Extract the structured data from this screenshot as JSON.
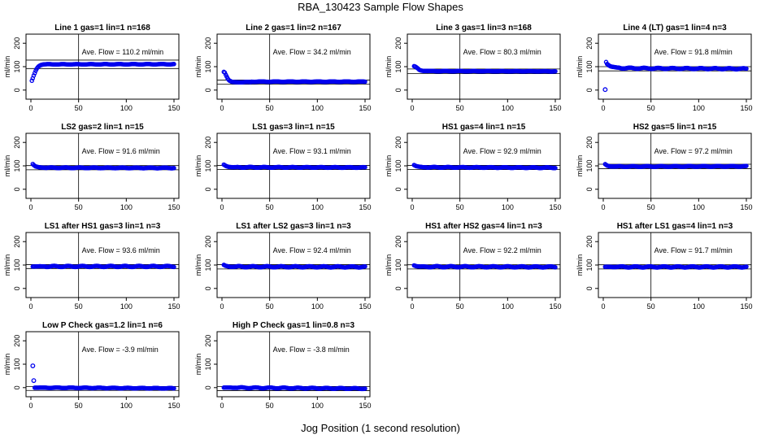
{
  "figure": {
    "title": "RBA_130423  Sample Flow Shapes",
    "xlabel": "Jog Position (1 second resolution)"
  },
  "chart_data": [
    {
      "type": "scatter",
      "title": "Line 1 gas=1 lin=1 n=168",
      "annotation": "Ave. Flow = 110.2  ml/min",
      "mean": 110.2,
      "ylabel": "ml/min",
      "xlim": [
        0,
        150
      ],
      "ylim": [
        -25,
        225
      ],
      "xticks": [
        0,
        50,
        100,
        150
      ],
      "yticks": [
        0,
        100,
        200
      ],
      "vline": 50,
      "hlines": [
        92,
        128
      ],
      "keypoints": [
        [
          1,
          40
        ],
        [
          2,
          50
        ],
        [
          3,
          62
        ],
        [
          4,
          72
        ],
        [
          5,
          82
        ],
        [
          6,
          90
        ],
        [
          7,
          96
        ],
        [
          8,
          101
        ],
        [
          9,
          104
        ],
        [
          10,
          106
        ],
        [
          11,
          108
        ],
        [
          12,
          109
        ],
        [
          14,
          110
        ],
        [
          150,
          110.5
        ]
      ],
      "noise": 0.8
    },
    {
      "type": "scatter",
      "title": "Line 2 gas=1 lin=2 n=167",
      "annotation": "Ave. Flow = 34.2  ml/min",
      "mean": 34.2,
      "ylabel": "ml/min",
      "xlim": [
        0,
        150
      ],
      "ylim": [
        -25,
        225
      ],
      "xticks": [
        0,
        50,
        100,
        150
      ],
      "yticks": [
        0,
        100,
        200
      ],
      "vline": 50,
      "hlines": [
        25,
        43
      ],
      "keypoints": [
        [
          2,
          78
        ],
        [
          3,
          75
        ],
        [
          4,
          66
        ],
        [
          5,
          58
        ],
        [
          6,
          50
        ],
        [
          7,
          44
        ],
        [
          8,
          40
        ],
        [
          9,
          38
        ],
        [
          10,
          36
        ],
        [
          12,
          34
        ],
        [
          30,
          34
        ],
        [
          31,
          36
        ],
        [
          150,
          36
        ]
      ],
      "noise": 0.8
    },
    {
      "type": "scatter",
      "title": "Line 3 gas=1 lin=3 n=168",
      "annotation": "Ave. Flow = 80.3  ml/min",
      "mean": 80.3,
      "ylabel": "ml/min",
      "xlim": [
        0,
        150
      ],
      "ylim": [
        -25,
        225
      ],
      "xticks": [
        0,
        50,
        100,
        150
      ],
      "yticks": [
        0,
        100,
        200
      ],
      "vline": 50,
      "hlines": [
        70,
        90
      ],
      "keypoints": [
        [
          2,
          102
        ],
        [
          3,
          101
        ],
        [
          4,
          98
        ],
        [
          5,
          95
        ],
        [
          6,
          92
        ],
        [
          7,
          88
        ],
        [
          8,
          85
        ],
        [
          10,
          83
        ],
        [
          12,
          82
        ],
        [
          20,
          81
        ],
        [
          150,
          80
        ]
      ],
      "noise": 0.8
    },
    {
      "type": "scatter",
      "title": "Line 4 (LT) gas=1 lin=4 n=3",
      "annotation": "Ave. Flow = 91.8  ml/min",
      "mean": 91.8,
      "ylabel": "ml/min",
      "xlim": [
        0,
        150
      ],
      "ylim": [
        -25,
        225
      ],
      "xticks": [
        0,
        50,
        100,
        150
      ],
      "yticks": [
        0,
        100,
        200
      ],
      "vline": 50,
      "hlines": [
        82,
        100
      ],
      "keypoints": [
        [
          3,
          120
        ],
        [
          4,
          112
        ],
        [
          6,
          106
        ],
        [
          8,
          101
        ],
        [
          10,
          99
        ],
        [
          14,
          96
        ],
        [
          20,
          94
        ],
        [
          40,
          93
        ],
        [
          150,
          91
        ]
      ],
      "outliers": [
        [
          2,
          2
        ]
      ],
      "noise": 2.2
    },
    {
      "type": "scatter",
      "title": "LS2 gas=2 lin=1 n=15",
      "annotation": "Ave. Flow = 91.6  ml/min",
      "mean": 91.6,
      "ylabel": "ml/min",
      "xlim": [
        0,
        150
      ],
      "ylim": [
        -25,
        225
      ],
      "xticks": [
        0,
        50,
        100,
        150
      ],
      "yticks": [
        0,
        100,
        200
      ],
      "vline": 50,
      "hlines": [
        83,
        101
      ],
      "keypoints": [
        [
          2,
          108
        ],
        [
          3,
          103
        ],
        [
          5,
          97
        ],
        [
          8,
          94
        ],
        [
          15,
          92
        ],
        [
          150,
          91
        ]
      ],
      "noise": 1.5
    },
    {
      "type": "scatter",
      "title": "LS1 gas=3 lin=1 n=15",
      "annotation": "Ave. Flow = 93.1  ml/min",
      "mean": 93.1,
      "ylabel": "ml/min",
      "xlim": [
        0,
        150
      ],
      "ylim": [
        -25,
        225
      ],
      "xticks": [
        0,
        50,
        100,
        150
      ],
      "yticks": [
        0,
        100,
        200
      ],
      "vline": 50,
      "hlines": [
        84,
        102
      ],
      "keypoints": [
        [
          2,
          105
        ],
        [
          4,
          100
        ],
        [
          7,
          96
        ],
        [
          12,
          94
        ],
        [
          150,
          93
        ]
      ],
      "noise": 1.5
    },
    {
      "type": "scatter",
      "title": "HS1 gas=4 lin=1 n=15",
      "annotation": "Ave. Flow = 92.9  ml/min",
      "mean": 92.9,
      "ylabel": "ml/min",
      "xlim": [
        0,
        150
      ],
      "ylim": [
        -25,
        225
      ],
      "xticks": [
        0,
        50,
        100,
        150
      ],
      "yticks": [
        0,
        100,
        200
      ],
      "vline": 50,
      "hlines": [
        84,
        102
      ],
      "keypoints": [
        [
          2,
          104
        ],
        [
          4,
          99
        ],
        [
          7,
          96
        ],
        [
          12,
          94
        ],
        [
          150,
          92
        ]
      ],
      "noise": 1.5
    },
    {
      "type": "scatter",
      "title": "HS2 gas=5 lin=1 n=15",
      "annotation": "Ave. Flow = 97.2  ml/min",
      "mean": 97.2,
      "ylabel": "ml/min",
      "xlim": [
        0,
        150
      ],
      "ylim": [
        -25,
        225
      ],
      "xticks": [
        0,
        50,
        100,
        150
      ],
      "yticks": [
        0,
        100,
        200
      ],
      "vline": 50,
      "hlines": [
        88,
        107
      ],
      "keypoints": [
        [
          2,
          107
        ],
        [
          4,
          101
        ],
        [
          7,
          98
        ],
        [
          12,
          97
        ],
        [
          150,
          98
        ]
      ],
      "noise": 1.5
    },
    {
      "type": "scatter",
      "title": "LS1 after HS1 gas=3 lin=1 n=3",
      "annotation": "Ave. Flow = 93.6  ml/min",
      "mean": 93.6,
      "ylabel": "ml/min",
      "xlim": [
        0,
        150
      ],
      "ylim": [
        -25,
        225
      ],
      "xticks": [
        0,
        50,
        100,
        150
      ],
      "yticks": [
        0,
        100,
        200
      ],
      "vline": 50,
      "hlines": [
        85,
        102
      ],
      "keypoints": [
        [
          2,
          94
        ],
        [
          150,
          94
        ]
      ],
      "noise": 2.5
    },
    {
      "type": "scatter",
      "title": "LS1 after LS2 gas=3 lin=1 n=3",
      "annotation": "Ave. Flow = 92.4  ml/min",
      "mean": 92.4,
      "ylabel": "ml/min",
      "xlim": [
        0,
        150
      ],
      "ylim": [
        -25,
        225
      ],
      "xticks": [
        0,
        50,
        100,
        150
      ],
      "yticks": [
        0,
        100,
        200
      ],
      "vline": 50,
      "hlines": [
        83,
        102
      ],
      "keypoints": [
        [
          2,
          100
        ],
        [
          4,
          96
        ],
        [
          8,
          93
        ],
        [
          150,
          92
        ]
      ],
      "noise": 2.5
    },
    {
      "type": "scatter",
      "title": "HS1 after HS2 gas=4 lin=1 n=3",
      "annotation": "Ave. Flow = 92.2  ml/min",
      "mean": 92.2,
      "ylabel": "ml/min",
      "xlim": [
        0,
        150
      ],
      "ylim": [
        -25,
        225
      ],
      "xticks": [
        0,
        50,
        100,
        150
      ],
      "yticks": [
        0,
        100,
        200
      ],
      "vline": 50,
      "hlines": [
        83,
        101
      ],
      "keypoints": [
        [
          2,
          99
        ],
        [
          4,
          96
        ],
        [
          8,
          93
        ],
        [
          150,
          92
        ]
      ],
      "noise": 2.5
    },
    {
      "type": "scatter",
      "title": "HS1 after LS1 gas=4 lin=1 n=3",
      "annotation": "Ave. Flow = 91.7  ml/min",
      "mean": 91.7,
      "ylabel": "ml/min",
      "xlim": [
        0,
        150
      ],
      "ylim": [
        -25,
        225
      ],
      "xticks": [
        0,
        50,
        100,
        150
      ],
      "yticks": [
        0,
        100,
        200
      ],
      "vline": 50,
      "hlines": [
        83,
        101
      ],
      "keypoints": [
        [
          2,
          92
        ],
        [
          150,
          92
        ]
      ],
      "noise": 2.5
    },
    {
      "type": "scatter",
      "title": "Low P Check gas=1.2 lin=1 n=6",
      "annotation": "Ave. Flow = -3.9  ml/min",
      "mean": -3.9,
      "ylabel": "ml/min",
      "xlim": [
        0,
        150
      ],
      "ylim": [
        -25,
        225
      ],
      "xticks": [
        0,
        50,
        100,
        150
      ],
      "yticks": [
        0,
        100,
        200
      ],
      "vline": 50,
      "hlines": [
        -12,
        5
      ],
      "keypoints": [
        [
          4,
          0
        ],
        [
          150,
          -3
        ]
      ],
      "outliers": [
        [
          2,
          93
        ],
        [
          3,
          30
        ]
      ],
      "noise": 1.2
    },
    {
      "type": "scatter",
      "title": "High P Check gas=1 lin=0.8 n=3",
      "annotation": "Ave. Flow = -3.8  ml/min",
      "mean": -3.8,
      "ylabel": "ml/min",
      "xlim": [
        0,
        150
      ],
      "ylim": [
        -25,
        225
      ],
      "xticks": [
        0,
        50,
        100,
        150
      ],
      "yticks": [
        0,
        100,
        200
      ],
      "vline": 50,
      "hlines": [
        -13,
        5
      ],
      "keypoints": [
        [
          2,
          0
        ],
        [
          150,
          -4
        ]
      ],
      "noise": 1.8
    }
  ]
}
